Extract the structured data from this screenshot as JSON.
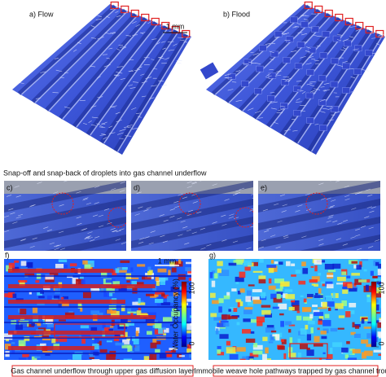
{
  "panels": [
    {
      "label": "a) Flow",
      "scale_bar": "1 mm"
    },
    {
      "label": "b) Flood"
    }
  ],
  "section_title": "Snap-off and snap-back of droplets into gas channel underflow",
  "snapshots": [
    {
      "label": "c)"
    },
    {
      "label": "d)"
    },
    {
      "label": "e)"
    }
  ],
  "maps": [
    {
      "label": "f)",
      "scale_bar": "1 mm",
      "caption": "Gas channel underflow through upper gas diffusion layer",
      "colorbar": {
        "title": "Water Occupancy (%)",
        "ticks": [
          0,
          100
        ]
      }
    },
    {
      "label": "g)",
      "caption": "Immobile weave hole pathways trapped by gas channel trough",
      "colorbar": {
        "ticks": [
          0,
          100
        ]
      }
    }
  ]
}
